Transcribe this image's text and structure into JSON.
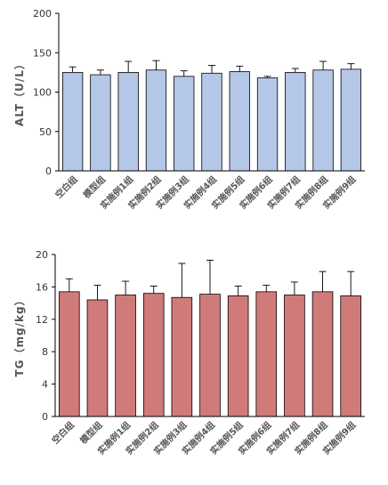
{
  "chart_data": [
    {
      "type": "bar",
      "ylabel": "ALT（U/L）",
      "categories": [
        "空白组",
        "模型组",
        "实施例1组",
        "实施例2组",
        "实施例3组",
        "实施例4组",
        "实施例5组",
        "实施例6组",
        "实施例7组",
        "实施例8组",
        "实施例9组"
      ],
      "values": [
        125,
        122,
        125,
        128,
        120,
        124,
        126,
        118,
        125,
        128,
        129
      ],
      "errors": [
        7,
        6,
        14,
        12,
        7,
        10,
        7,
        2,
        5,
        11,
        7
      ],
      "ylim": [
        0,
        200
      ],
      "yticks": [
        "0",
        "50",
        "100",
        "150",
        "200"
      ],
      "bar_color": "#b4c7e7",
      "grid": false
    },
    {
      "type": "bar",
      "ylabel": "TG（mg/kg）",
      "categories": [
        "空白组",
        "模型组",
        "实施例1组",
        "实施例2组",
        "实施例3组",
        "实施例4组",
        "实施例5组",
        "实施例6组",
        "实施例7组",
        "实施例8组",
        "实施例9组"
      ],
      "values": [
        15.4,
        14.4,
        15.0,
        15.2,
        14.7,
        15.1,
        14.9,
        15.4,
        15.0,
        15.4,
        14.9
      ],
      "errors": [
        1.6,
        1.8,
        1.7,
        0.9,
        4.2,
        4.2,
        1.2,
        0.8,
        1.6,
        2.5,
        3.0
      ],
      "ylim": [
        0,
        20
      ],
      "yticks": [
        "0",
        "4",
        "8",
        "12",
        "16",
        "20"
      ],
      "bar_color": "#d07a7a",
      "grid": false
    }
  ]
}
